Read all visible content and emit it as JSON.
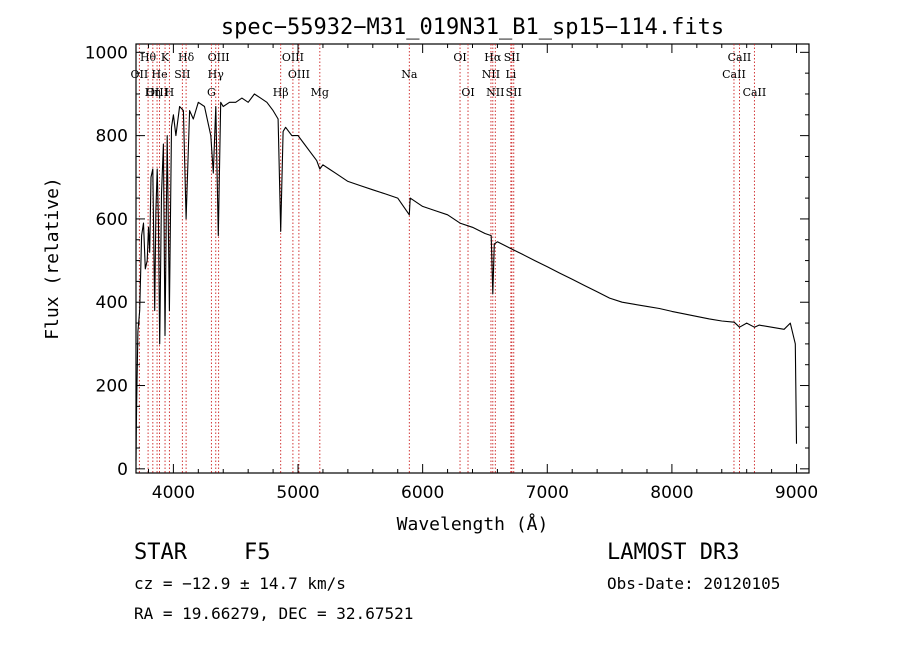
{
  "chart_data": {
    "type": "line",
    "title": "spec−55932−M31_019N31_B1_sp15−114.fits",
    "xlabel": "Wavelength (Å)",
    "ylabel": "Flux (relative)",
    "xlim": [
      3700,
      9100
    ],
    "ylim": [
      -10,
      1020
    ],
    "grid": false,
    "xticks": [
      4000,
      5000,
      6000,
      7000,
      8000,
      9000
    ],
    "yticks": [
      0,
      200,
      400,
      600,
      800,
      1000
    ],
    "series": [
      {
        "name": "spectrum",
        "x": [
          3700,
          3705,
          3715,
          3730,
          3745,
          3760,
          3775,
          3790,
          3800,
          3810,
          3820,
          3835,
          3850,
          3860,
          3870,
          3880,
          3890,
          3905,
          3920,
          3933,
          3950,
          3968,
          3985,
          4000,
          4020,
          4050,
          4080,
          4102,
          4130,
          4160,
          4200,
          4250,
          4300,
          4320,
          4340,
          4360,
          4380,
          4400,
          4450,
          4500,
          4550,
          4600,
          4650,
          4700,
          4750,
          4800,
          4840,
          4861,
          4880,
          4900,
          4950,
          5000,
          5050,
          5100,
          5150,
          5175,
          5200,
          5250,
          5300,
          5400,
          5500,
          5600,
          5700,
          5800,
          5893,
          5900,
          6000,
          6100,
          6200,
          6300,
          6400,
          6500,
          6550,
          6563,
          6575,
          6600,
          6700,
          6800,
          6900,
          7000,
          7100,
          7200,
          7300,
          7400,
          7500,
          7600,
          7700,
          7800,
          7900,
          8000,
          8100,
          8200,
          8300,
          8400,
          8500,
          8542,
          8600,
          8662,
          8700,
          8800,
          8900,
          8950,
          8990,
          9000
        ],
        "values": [
          20,
          150,
          330,
          380,
          560,
          590,
          480,
          500,
          580,
          520,
          700,
          720,
          380,
          620,
          720,
          600,
          300,
          660,
          780,
          320,
          800,
          380,
          820,
          850,
          800,
          870,
          860,
          600,
          860,
          840,
          880,
          870,
          800,
          710,
          870,
          560,
          880,
          870,
          880,
          880,
          890,
          880,
          900,
          890,
          880,
          860,
          840,
          570,
          810,
          820,
          800,
          800,
          780,
          760,
          740,
          720,
          730,
          720,
          710,
          690,
          680,
          670,
          660,
          650,
          610,
          650,
          630,
          620,
          610,
          590,
          580,
          565,
          560,
          420,
          540,
          545,
          530,
          515,
          500,
          485,
          470,
          455,
          440,
          425,
          410,
          400,
          395,
          390,
          385,
          378,
          372,
          366,
          360,
          355,
          352,
          340,
          350,
          340,
          345,
          340,
          335,
          350,
          300,
          60
        ]
      }
    ],
    "lines": [
      {
        "label": "Hθ",
        "x": 3797,
        "row": 1
      },
      {
        "label": "OII",
        "x": 3727,
        "row": 2
      },
      {
        "label": "OIII",
        "x": 3869,
        "row": 3
      },
      {
        "label": "Hη",
        "x": 3835,
        "row": 3
      },
      {
        "label": "K",
        "x": 3933,
        "row": 1
      },
      {
        "label": "He",
        "x": 3889,
        "row": 2
      },
      {
        "label": "SII",
        "x": 4072,
        "row": 2
      },
      {
        "label": "H",
        "x": 3968,
        "row": 3
      },
      {
        "label": "Hδ",
        "x": 4102,
        "row": 1
      },
      {
        "label": "OIII",
        "x": 4363,
        "row": 1
      },
      {
        "label": "Hγ",
        "x": 4340,
        "row": 2
      },
      {
        "label": "G",
        "x": 4305,
        "row": 3
      },
      {
        "label": "Hβ",
        "x": 4861,
        "row": 3
      },
      {
        "label": "OIII",
        "x": 4959,
        "row": 1
      },
      {
        "label": "OIII",
        "x": 5007,
        "row": 2
      },
      {
        "label": "Mg",
        "x": 5175,
        "row": 3
      },
      {
        "label": "Na",
        "x": 5893,
        "row": 2
      },
      {
        "label": "OI",
        "x": 6300,
        "row": 1
      },
      {
        "label": "OI",
        "x": 6364,
        "row": 3
      },
      {
        "label": "Hα",
        "x": 6563,
        "row": 1
      },
      {
        "label": "NII",
        "x": 6548,
        "row": 2
      },
      {
        "label": "NII",
        "x": 6583,
        "row": 3
      },
      {
        "label": "SII",
        "x": 6716,
        "row": 1
      },
      {
        "label": "Li",
        "x": 6708,
        "row": 2
      },
      {
        "label": "SII",
        "x": 6731,
        "row": 3
      },
      {
        "label": "CaII",
        "x": 8542,
        "row": 1
      },
      {
        "label": "CaII",
        "x": 8498,
        "row": 2
      },
      {
        "label": "CaII",
        "x": 8662,
        "row": 3
      }
    ]
  },
  "info": {
    "class_label": "STAR",
    "subclass": "F5",
    "survey": "LAMOST DR3",
    "cz": "cz = −12.9 ± 14.7 km/s",
    "obs_date": "Obs-Date: 20120105",
    "radec": "RA =  19.66279, DEC =  32.67521"
  },
  "colors": {
    "axis": "#000000",
    "line_markers": "#cc2222",
    "background": "#ffffff"
  }
}
